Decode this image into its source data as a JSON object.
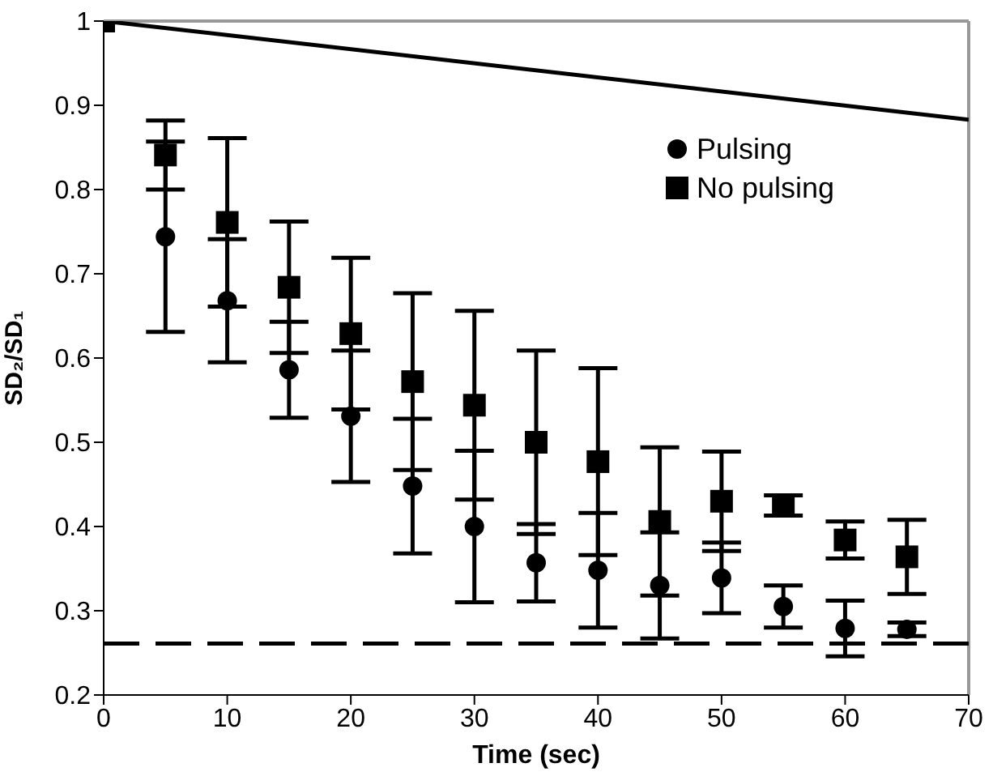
{
  "chart_data": {
    "type": "scatter",
    "xlabel": "Time (sec)",
    "ylabel": "SD₂/SD₁",
    "xlim": [
      0,
      70
    ],
    "xticks": [
      0,
      10,
      20,
      30,
      40,
      50,
      60,
      70
    ],
    "ylim": [
      0.2,
      1
    ],
    "yticks": [
      0.2,
      0.3,
      0.4,
      0.5,
      0.6,
      0.7,
      0.8,
      0.9,
      {
        "value": 1,
        "label": "1"
      }
    ],
    "legend": "top right",
    "x": [
      0,
      5,
      10,
      15,
      20,
      25,
      30,
      35,
      40,
      45,
      50,
      55,
      60,
      65
    ],
    "series": [
      {
        "name": "Pulsing",
        "color": "#000000",
        "marker": "circle",
        "values": [
          null,
          0.744,
          0.668,
          0.586,
          0.531,
          0.448,
          0.4,
          0.357,
          0.348,
          0.33,
          0.339,
          0.305,
          0.279,
          0.278
        ],
        "errors": [
          null,
          0.113,
          0.073,
          0.057,
          0.078,
          0.08,
          0.09,
          0.046,
          0.068,
          0.063,
          0.042,
          0.025,
          0.033,
          0.008
        ]
      },
      {
        "name": "No pulsing",
        "color": "#000000",
        "marker": "square",
        "values": [
          1,
          0.841,
          0.761,
          0.684,
          0.629,
          0.572,
          0.544,
          0.5,
          0.477,
          0.406,
          0.43,
          0.425,
          0.384,
          0.364
        ],
        "errors": [
          null,
          0.041,
          0.1,
          0.078,
          0.09,
          0.105,
          0.112,
          0.109,
          0.111,
          0.088,
          0.059,
          0.012,
          0.022,
          0.044
        ]
      },
      {
        "type": "line",
        "color": "#000000",
        "marker": "none",
        "line_style": "solid",
        "x": [
          0,
          70
        ],
        "values": [
          1,
          0.883
        ]
      }
    ],
    "ref_lines": [
      {
        "axis": "y",
        "value": 0.261,
        "color": "#000000",
        "line_style": "dashed"
      }
    ]
  }
}
